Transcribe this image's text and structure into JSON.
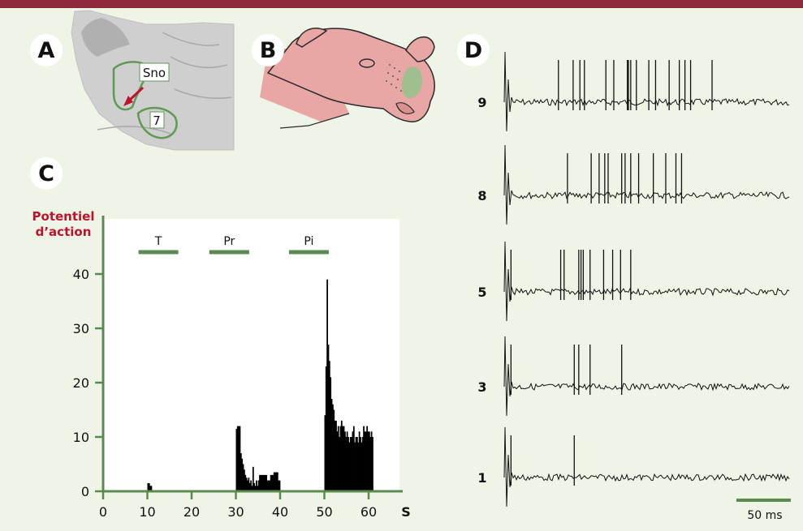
{
  "panels": {
    "a": "A",
    "b": "B",
    "c": "C",
    "d": "D"
  },
  "panel_a": {
    "label_sno": "Sno",
    "label_7": "7"
  },
  "colors": {
    "top_bar": "#8f2a3d",
    "background": "#eef5e7",
    "axis_green": "#5a8a52",
    "bar_black": "#000000",
    "ylabel_red": "#c0122b",
    "skin_pink": "#e8a7a5",
    "nucleus_green": "#9fbf8f"
  },
  "chart_data": [
    {
      "type": "bar",
      "ylabel": [
        "Potentiel",
        "d’action"
      ],
      "xlabel": "S",
      "xlim": [
        0,
        60
      ],
      "ylim": [
        0,
        40
      ],
      "xticks": [
        0,
        10,
        20,
        30,
        40,
        50,
        60
      ],
      "yticks": [
        0,
        10,
        20,
        30,
        40
      ],
      "stimuli": [
        {
          "label": "T",
          "start": 8,
          "end": 17
        },
        {
          "label": "Pr",
          "start": 24,
          "end": 33
        },
        {
          "label": "Pi",
          "start": 42,
          "end": 51
        }
      ],
      "bin_width": 0.25,
      "bins": [
        {
          "x": 10.0,
          "v": 1.5
        },
        {
          "x": 10.25,
          "v": 1.5
        },
        {
          "x": 10.5,
          "v": 1
        },
        {
          "x": 10.75,
          "v": 1
        },
        {
          "x": 30.0,
          "v": 11.5
        },
        {
          "x": 30.25,
          "v": 12
        },
        {
          "x": 30.5,
          "v": 12
        },
        {
          "x": 30.75,
          "v": 12
        },
        {
          "x": 31.0,
          "v": 7
        },
        {
          "x": 31.25,
          "v": 6
        },
        {
          "x": 31.5,
          "v": 5
        },
        {
          "x": 31.75,
          "v": 4
        },
        {
          "x": 32.0,
          "v": 3
        },
        {
          "x": 32.25,
          "v": 2.5
        },
        {
          "x": 32.5,
          "v": 2
        },
        {
          "x": 32.75,
          "v": 2.5
        },
        {
          "x": 33.0,
          "v": 1.5
        },
        {
          "x": 33.25,
          "v": 2
        },
        {
          "x": 33.5,
          "v": 1
        },
        {
          "x": 33.75,
          "v": 4.5
        },
        {
          "x": 34.0,
          "v": 1.5
        },
        {
          "x": 34.25,
          "v": 1
        },
        {
          "x": 34.5,
          "v": 2
        },
        {
          "x": 34.75,
          "v": 1
        },
        {
          "x": 35.0,
          "v": 2
        },
        {
          "x": 35.25,
          "v": 3
        },
        {
          "x": 35.5,
          "v": 3
        },
        {
          "x": 35.75,
          "v": 3
        },
        {
          "x": 36.0,
          "v": 3
        },
        {
          "x": 36.25,
          "v": 3
        },
        {
          "x": 36.5,
          "v": 3
        },
        {
          "x": 36.75,
          "v": 3
        },
        {
          "x": 37.0,
          "v": 2
        },
        {
          "x": 37.25,
          "v": 2
        },
        {
          "x": 37.5,
          "v": 2
        },
        {
          "x": 37.75,
          "v": 3
        },
        {
          "x": 38.0,
          "v": 3
        },
        {
          "x": 38.25,
          "v": 3
        },
        {
          "x": 38.5,
          "v": 3.5
        },
        {
          "x": 38.75,
          "v": 3.5
        },
        {
          "x": 39.0,
          "v": 3.5
        },
        {
          "x": 39.25,
          "v": 3.5
        },
        {
          "x": 39.5,
          "v": 2
        },
        {
          "x": 39.75,
          "v": 2
        },
        {
          "x": 50.0,
          "v": 14
        },
        {
          "x": 50.25,
          "v": 23
        },
        {
          "x": 50.5,
          "v": 39
        },
        {
          "x": 50.75,
          "v": 27
        },
        {
          "x": 51.0,
          "v": 24
        },
        {
          "x": 51.25,
          "v": 21
        },
        {
          "x": 51.5,
          "v": 17
        },
        {
          "x": 51.75,
          "v": 16
        },
        {
          "x": 52.0,
          "v": 15
        },
        {
          "x": 52.25,
          "v": 13
        },
        {
          "x": 52.5,
          "v": 13
        },
        {
          "x": 52.75,
          "v": 11
        },
        {
          "x": 53.0,
          "v": 12
        },
        {
          "x": 53.25,
          "v": 10
        },
        {
          "x": 53.5,
          "v": 12
        },
        {
          "x": 53.75,
          "v": 13
        },
        {
          "x": 54.0,
          "v": 12
        },
        {
          "x": 54.25,
          "v": 12
        },
        {
          "x": 54.5,
          "v": 11
        },
        {
          "x": 54.75,
          "v": 10
        },
        {
          "x": 55.0,
          "v": 11
        },
        {
          "x": 55.25,
          "v": 10
        },
        {
          "x": 55.5,
          "v": 9
        },
        {
          "x": 55.75,
          "v": 10
        },
        {
          "x": 56.0,
          "v": 10
        },
        {
          "x": 56.25,
          "v": 11
        },
        {
          "x": 56.5,
          "v": 12
        },
        {
          "x": 56.75,
          "v": 9
        },
        {
          "x": 57.0,
          "v": 10
        },
        {
          "x": 57.25,
          "v": 10
        },
        {
          "x": 57.5,
          "v": 9
        },
        {
          "x": 57.75,
          "v": 11
        },
        {
          "x": 58.0,
          "v": 10
        },
        {
          "x": 58.25,
          "v": 9
        },
        {
          "x": 58.5,
          "v": 10
        },
        {
          "x": 58.75,
          "v": 12
        },
        {
          "x": 59.0,
          "v": 11
        },
        {
          "x": 59.25,
          "v": 11
        },
        {
          "x": 59.5,
          "v": 12
        },
        {
          "x": 59.75,
          "v": 11
        },
        {
          "x": 60.0,
          "v": 11
        },
        {
          "x": 60.25,
          "v": 10
        },
        {
          "x": 60.5,
          "v": 11
        },
        {
          "x": 60.75,
          "v": 10
        }
      ]
    },
    {
      "type": "line",
      "traces": [
        {
          "label": "9",
          "spikes_ms": [
            48,
            61,
            67,
            71,
            90,
            97,
            109,
            110,
            112,
            117,
            128,
            134,
            146,
            155,
            160,
            165,
            184
          ]
        },
        {
          "label": "8",
          "spikes_ms": [
            56,
            77,
            84,
            89,
            92,
            104,
            107,
            112,
            119,
            132,
            143,
            152,
            157
          ]
        },
        {
          "label": "5",
          "spikes_ms": [
            6,
            50,
            53,
            66,
            68,
            70,
            76,
            88,
            96,
            103,
            112
          ]
        },
        {
          "label": "3",
          "spikes_ms": [
            6,
            62,
            66,
            76,
            104
          ]
        },
        {
          "label": "1",
          "spikes_ms": [
            6,
            62
          ]
        }
      ],
      "stimulus_ms": 0,
      "duration_ms": 253,
      "scale_bar": {
        "ms": 50,
        "label": "50 ms"
      }
    }
  ]
}
